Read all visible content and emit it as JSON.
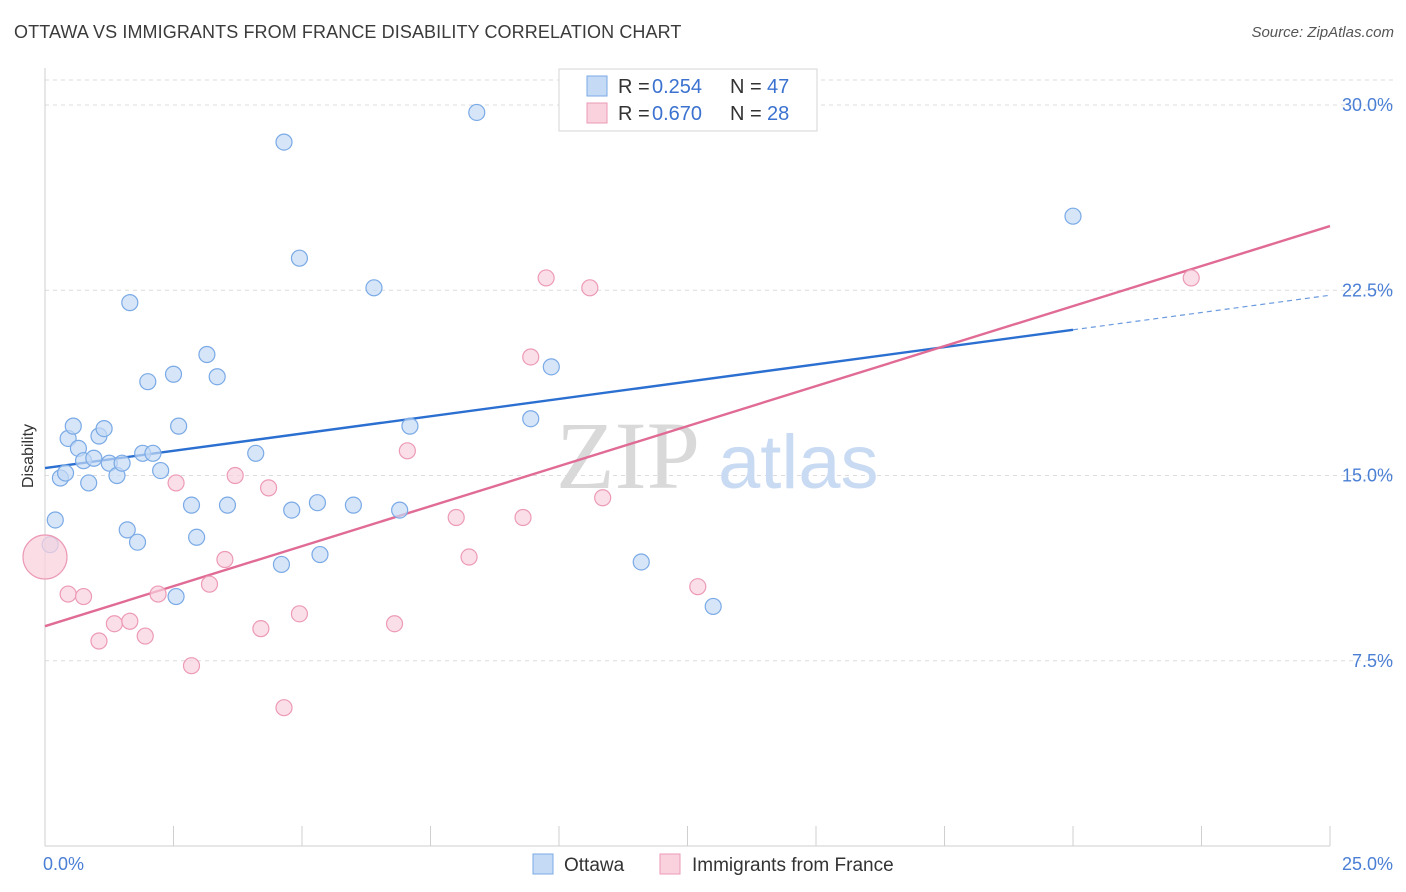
{
  "title": "OTTAWA VS IMMIGRANTS FROM FRANCE DISABILITY CORRELATION CHART",
  "source": "Source: ZipAtlas.com",
  "watermark": {
    "zip": "ZIP",
    "atlas": "atlas"
  },
  "chart_data": {
    "type": "scatter",
    "xlabel": "",
    "ylabel": "Disability",
    "xlim": [
      0,
      25
    ],
    "ylim": [
      0,
      31.5
    ],
    "x_tick_labels": [
      {
        "value": 0,
        "label": "0.0%"
      },
      {
        "value": 25,
        "label": "25.0%"
      }
    ],
    "y_tick_labels": [
      {
        "value": 7.5,
        "label": "7.5%"
      },
      {
        "value": 15,
        "label": "15.0%"
      },
      {
        "value": 22.5,
        "label": "22.5%"
      },
      {
        "value": 30,
        "label": "30.0%"
      }
    ],
    "legend": [
      {
        "series": "Ottawa",
        "r_label": "R =",
        "r": "0.254",
        "n_label": "N =",
        "n": "47"
      },
      {
        "series": "Immigrants from France",
        "r_label": "R =",
        "r": "0.670",
        "n_label": "N =",
        "n": "28"
      }
    ],
    "series": [
      {
        "name": "Ottawa",
        "color": "#7aaae6",
        "fill": "#c5daf5",
        "line_color": "#2b6fd1",
        "trend": {
          "x0": 0,
          "y0": 15.3,
          "x1": 20,
          "y1": 20.9,
          "dash_to_x": 25,
          "dash_to_y": 22.3
        },
        "points": [
          [
            0.2,
            13.2
          ],
          [
            0.1,
            12.2
          ],
          [
            0.3,
            14.9
          ],
          [
            0.4,
            15.1
          ],
          [
            0.45,
            16.5
          ],
          [
            0.55,
            17.0
          ],
          [
            0.65,
            16.1
          ],
          [
            0.75,
            15.6
          ],
          [
            0.85,
            14.7
          ],
          [
            0.95,
            15.7
          ],
          [
            1.05,
            16.6
          ],
          [
            1.15,
            16.9
          ],
          [
            1.25,
            15.5
          ],
          [
            1.4,
            15.0
          ],
          [
            1.5,
            15.5
          ],
          [
            1.6,
            12.8
          ],
          [
            1.65,
            22.0
          ],
          [
            1.8,
            12.3
          ],
          [
            1.9,
            15.9
          ],
          [
            2.0,
            18.8
          ],
          [
            2.1,
            15.9
          ],
          [
            2.25,
            15.2
          ],
          [
            2.5,
            19.1
          ],
          [
            2.55,
            10.1
          ],
          [
            2.6,
            17.0
          ],
          [
            2.85,
            13.8
          ],
          [
            2.95,
            12.5
          ],
          [
            3.15,
            19.9
          ],
          [
            3.35,
            19.0
          ],
          [
            3.55,
            13.8
          ],
          [
            4.1,
            15.9
          ],
          [
            4.6,
            11.4
          ],
          [
            4.65,
            28.5
          ],
          [
            4.8,
            13.6
          ],
          [
            4.95,
            23.8
          ],
          [
            5.3,
            13.9
          ],
          [
            5.35,
            11.8
          ],
          [
            6.0,
            13.8
          ],
          [
            6.4,
            22.6
          ],
          [
            6.9,
            13.6
          ],
          [
            7.1,
            17.0
          ],
          [
            8.4,
            29.7
          ],
          [
            9.45,
            17.3
          ],
          [
            9.85,
            19.4
          ],
          [
            11.6,
            11.5
          ],
          [
            13.0,
            9.7
          ],
          [
            20.0,
            25.5
          ]
        ]
      },
      {
        "name": "Immigrants from France",
        "color": "#ec9ab5",
        "fill": "#f9d2de",
        "line_color": "#e06b95",
        "trend": {
          "x0": 0,
          "y0": 8.9,
          "x1": 25,
          "y1": 25.1
        },
        "points": [
          [
            0.0,
            11.7
          ],
          [
            0.45,
            10.2
          ],
          [
            0.75,
            10.1
          ],
          [
            1.05,
            8.3
          ],
          [
            1.35,
            9.0
          ],
          [
            1.65,
            9.1
          ],
          [
            1.95,
            8.5
          ],
          [
            2.2,
            10.2
          ],
          [
            2.55,
            14.7
          ],
          [
            2.85,
            7.3
          ],
          [
            3.2,
            10.6
          ],
          [
            3.5,
            11.6
          ],
          [
            3.7,
            15.0
          ],
          [
            4.2,
            8.8
          ],
          [
            4.35,
            14.5
          ],
          [
            4.65,
            5.6
          ],
          [
            4.95,
            9.4
          ],
          [
            6.8,
            9.0
          ],
          [
            7.05,
            16.0
          ],
          [
            8.0,
            13.3
          ],
          [
            8.25,
            11.7
          ],
          [
            9.3,
            13.3
          ],
          [
            9.75,
            23.0
          ],
          [
            9.45,
            19.8
          ],
          [
            10.6,
            22.6
          ],
          [
            10.85,
            14.1
          ],
          [
            12.7,
            10.5
          ],
          [
            22.3,
            23.0
          ]
        ]
      }
    ]
  }
}
